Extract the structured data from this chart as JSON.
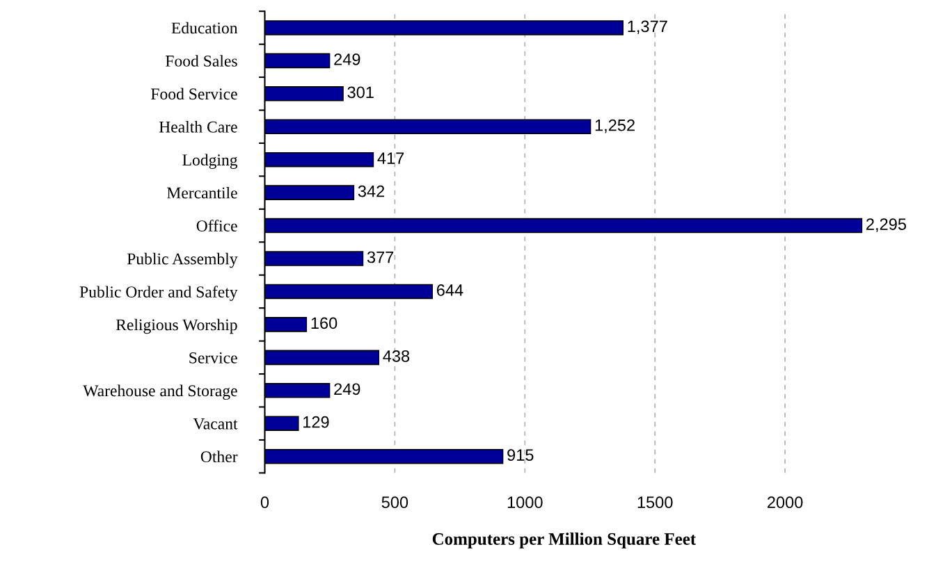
{
  "chart_data": {
    "type": "bar",
    "orientation": "horizontal",
    "xlabel": "Computers per Million Square Feet",
    "categories": [
      "Education",
      "Food Sales",
      "Food Service",
      "Health Care",
      "Lodging",
      "Mercantile",
      "Office",
      "Public Assembly",
      "Public Order and Safety",
      "Religious Worship",
      "Service",
      "Warehouse and Storage",
      "Vacant",
      "Other"
    ],
    "values": [
      1377,
      249,
      301,
      1252,
      417,
      342,
      2295,
      377,
      644,
      160,
      438,
      249,
      129,
      915
    ],
    "value_labels": [
      "1,377",
      "249",
      "301",
      "1,252",
      "417",
      "342",
      "2,295",
      "377",
      "644",
      "160",
      "438",
      "249",
      "129",
      "915"
    ],
    "color": "#000099",
    "xlim": [
      0,
      2300
    ],
    "xticks": [
      0,
      500,
      1000,
      1500,
      2000
    ],
    "grid": "x"
  }
}
